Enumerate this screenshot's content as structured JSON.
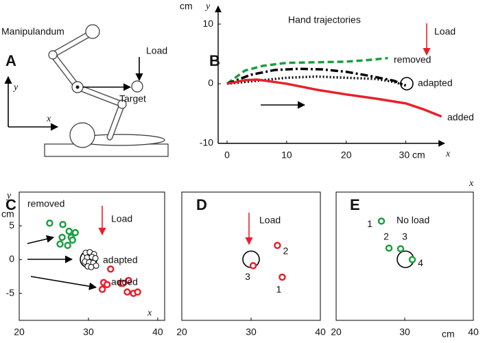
{
  "panel_a": {
    "panel": "A",
    "title": "Manipulandum",
    "annotation": "Load",
    "target": "Target",
    "xlabel": "x",
    "ylabel": "y"
  },
  "chart_data": [
    {
      "type": "line",
      "panel": "B",
      "title": "Hand trajectories",
      "annotation": "Load",
      "xlabel": "x",
      "ylabel": "y",
      "yunit": "cm",
      "xlim": [
        -1.5,
        36.5
      ],
      "ylim": [
        -10,
        13
      ],
      "xticks": [
        0,
        10,
        20,
        {
          "value": 30,
          "label": "30 cm"
        }
      ],
      "yticks": [
        -10,
        0,
        10
      ],
      "series": [
        {
          "name": "removed",
          "color": "#1a9e3f",
          "style": "dashed",
          "x": [
            0,
            3,
            6,
            10,
            15,
            20,
            24,
            27
          ],
          "y": [
            0,
            2.2,
            3,
            3.5,
            3.6,
            3.7,
            4,
            4.3
          ]
        },
        {
          "name": "adapted",
          "color": "#000000",
          "style": "dashdot",
          "x": [
            0,
            4,
            8,
            12,
            16,
            20,
            24,
            28,
            30
          ],
          "y": [
            0,
            1.5,
            2.3,
            2.5,
            2.4,
            2,
            1.3,
            0.5,
            -0.3
          ]
        },
        {
          "color": "#000000",
          "style": "dotted",
          "x": [
            0,
            5,
            10,
            15,
            20,
            25,
            28,
            30
          ],
          "y": [
            0,
            0.5,
            1,
            1.2,
            1,
            0.8,
            0.3,
            -0.3
          ]
        },
        {
          "name": "added",
          "color": "#e8202a",
          "style": "solid",
          "x": [
            0,
            3,
            5,
            10,
            15,
            20,
            25,
            30,
            33,
            36
          ],
          "y": [
            0,
            0.6,
            0.7,
            0,
            -1,
            -1.8,
            -2.5,
            -3.3,
            -4.3,
            -5.5
          ]
        }
      ]
    },
    {
      "type": "scatter",
      "panel": "C",
      "annotation": "Load",
      "xlabel": "x",
      "ylabel": "y",
      "yunit": "cm",
      "xlim": [
        20,
        41
      ],
      "ylim": [
        -9,
        10
      ],
      "xticks": [
        20,
        30,
        40
      ],
      "yticks": [
        -5,
        0,
        5
      ],
      "series": [
        {
          "name": "removed",
          "color": "#1a9e3f",
          "x": [
            24.4,
            26.3,
            27.2,
            28.1,
            26.2,
            27.5,
            25.9,
            27.7,
            27
          ],
          "y": [
            5.4,
            5.2,
            4.2,
            4,
            3.3,
            3.3,
            2.3,
            2.9,
            2.1
          ]
        },
        {
          "name": "adapted",
          "color": "#000000",
          "x": [
            29.6,
            30.2,
            30.8,
            29.8,
            30.5,
            31,
            29.5,
            30.1,
            30.7,
            29.9,
            30.4,
            31.1
          ],
          "y": [
            1,
            1.1,
            0.8,
            0.3,
            0.4,
            0.2,
            -0.3,
            -0.4,
            -0.5,
            -1,
            -1.1,
            -0.9
          ]
        },
        {
          "name": "added",
          "color": "#e8202a",
          "x": [
            33.2,
            32.2,
            32.7,
            32,
            34.7,
            35,
            35.8,
            35.6,
            36.5,
            37.1
          ],
          "y": [
            -1.4,
            -3.4,
            -3.7,
            -4.4,
            -3.5,
            -3.5,
            -3.1,
            -4.8,
            -5,
            -4.8
          ]
        }
      ]
    },
    {
      "type": "scatter",
      "panel": "D",
      "annotation": "Load",
      "xlim": [
        20,
        40
      ],
      "ylim": [
        -9,
        10
      ],
      "xticks": [
        20,
        30,
        40
      ],
      "series": [
        {
          "color": "#e8202a",
          "x": [
            33.8,
            30.3,
            34.5
          ],
          "y": [
            2.1,
            -0.9,
            -2.6
          ],
          "labels": [
            "2",
            "3",
            "1"
          ]
        }
      ]
    },
    {
      "type": "scatter",
      "panel": "E",
      "annotation": "No load",
      "xlabel": "x",
      "xunit": "cm",
      "xlim": [
        20,
        40
      ],
      "ylim": [
        -9,
        10
      ],
      "xticks": [
        20,
        30,
        40
      ],
      "series": [
        {
          "color": "#1a9e3f",
          "x": [
            26.6,
            27.7,
            29.4,
            31.1
          ],
          "y": [
            5.7,
            1.7,
            1.6,
            0
          ],
          "labels": [
            "1",
            "2",
            "3",
            "4"
          ]
        }
      ]
    }
  ]
}
